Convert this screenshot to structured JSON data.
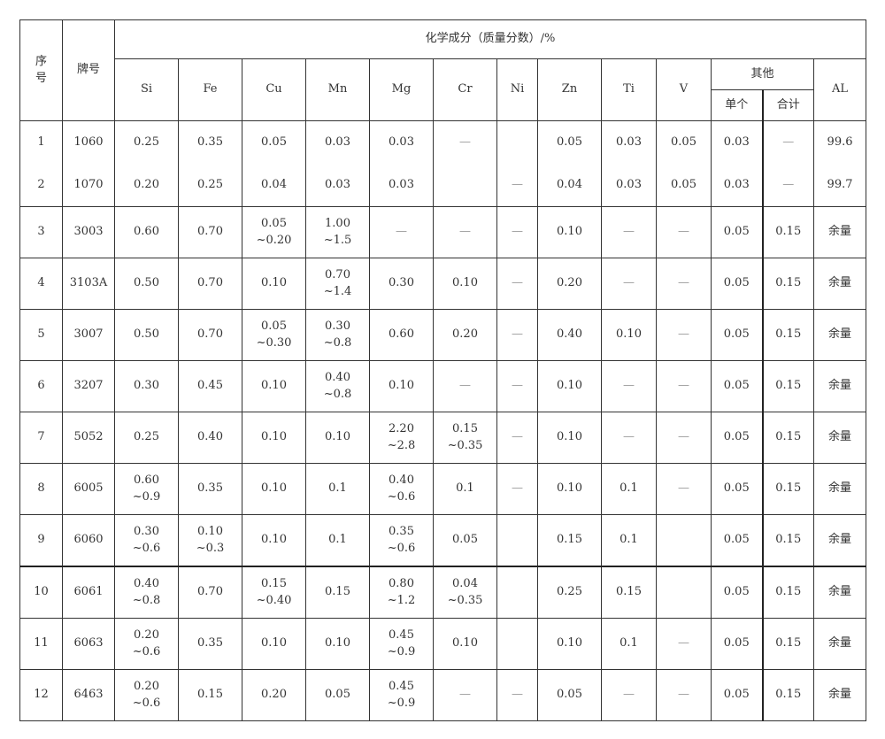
{
  "header": {
    "seq": "序号",
    "grade": "牌号",
    "composition": "化学成分（质量分数）/%",
    "elements": [
      "Si",
      "Fe",
      "Cu",
      "Mn",
      "Mg",
      "Cr",
      "Ni",
      "Zn",
      "Ti",
      "V"
    ],
    "others": "其他",
    "single": "单个",
    "total": "合计",
    "al": "AL"
  },
  "rows": [
    {
      "seq": "1",
      "grade": "1060",
      "cells": [
        [
          "0.25"
        ],
        [
          "0.35"
        ],
        [
          "0.05"
        ],
        [
          "0.03"
        ],
        [
          "0.03"
        ],
        [
          "—"
        ],
        [
          ""
        ],
        [
          "0.05"
        ],
        [
          "0.03"
        ],
        [
          "0.05"
        ],
        [
          "0.03"
        ],
        [
          "—"
        ],
        [
          "99.6"
        ]
      ]
    },
    {
      "seq": "2",
      "grade": "1070",
      "cells": [
        [
          "0.20"
        ],
        [
          "0.25"
        ],
        [
          "0.04"
        ],
        [
          "0.03"
        ],
        [
          "0.03"
        ],
        [
          ""
        ],
        [
          "—"
        ],
        [
          "0.04"
        ],
        [
          "0.03"
        ],
        [
          "0.05"
        ],
        [
          "0.03"
        ],
        [
          "—"
        ],
        [
          "99.7"
        ]
      ]
    },
    {
      "seq": "3",
      "grade": "3003",
      "cells": [
        [
          "0.60"
        ],
        [
          "0.70"
        ],
        [
          "0.05",
          "~0.20"
        ],
        [
          "1.00",
          "~1.5"
        ],
        [
          "—"
        ],
        [
          "—"
        ],
        [
          "—"
        ],
        [
          "0.10"
        ],
        [
          "—"
        ],
        [
          "—"
        ],
        [
          "0.05"
        ],
        [
          "0.15"
        ],
        [
          "余量"
        ]
      ]
    },
    {
      "seq": "4",
      "grade": "3103A",
      "cells": [
        [
          "0.50"
        ],
        [
          "0.70"
        ],
        [
          "0.10"
        ],
        [
          "0.70",
          "~1.4"
        ],
        [
          "0.30"
        ],
        [
          "0.10"
        ],
        [
          "—"
        ],
        [
          "0.20"
        ],
        [
          "—"
        ],
        [
          "—"
        ],
        [
          "0.05"
        ],
        [
          "0.15"
        ],
        [
          "余量"
        ]
      ]
    },
    {
      "seq": "5",
      "grade": "3007",
      "cells": [
        [
          "0.50"
        ],
        [
          "0.70"
        ],
        [
          "0.05",
          "~0.30"
        ],
        [
          "0.30",
          "~0.8"
        ],
        [
          "0.60"
        ],
        [
          "0.20"
        ],
        [
          "—"
        ],
        [
          "0.40"
        ],
        [
          "0.10"
        ],
        [
          "—"
        ],
        [
          "0.05"
        ],
        [
          "0.15"
        ],
        [
          "余量"
        ]
      ]
    },
    {
      "seq": "6",
      "grade": "3207",
      "cells": [
        [
          "0.30"
        ],
        [
          "0.45"
        ],
        [
          "0.10"
        ],
        [
          "0.40",
          "~0.8"
        ],
        [
          "0.10"
        ],
        [
          "—"
        ],
        [
          "—"
        ],
        [
          "0.10"
        ],
        [
          "—"
        ],
        [
          "—"
        ],
        [
          "0.05"
        ],
        [
          "0.15"
        ],
        [
          "余量"
        ]
      ]
    },
    {
      "seq": "7",
      "grade": "5052",
      "cells": [
        [
          "0.25"
        ],
        [
          "0.40"
        ],
        [
          "0.10"
        ],
        [
          "0.10"
        ],
        [
          "2.20",
          "~2.8"
        ],
        [
          "0.15",
          "~0.35"
        ],
        [
          "—"
        ],
        [
          "0.10"
        ],
        [
          "—"
        ],
        [
          "—"
        ],
        [
          "0.05"
        ],
        [
          "0.15"
        ],
        [
          "余量"
        ]
      ]
    },
    {
      "seq": "8",
      "grade": "6005",
      "cells": [
        [
          "0.60",
          "~0.9"
        ],
        [
          "0.35"
        ],
        [
          "0.10"
        ],
        [
          "0.1"
        ],
        [
          "0.40",
          "~0.6"
        ],
        [
          "0.1"
        ],
        [
          "—"
        ],
        [
          "0.10"
        ],
        [
          "0.1"
        ],
        [
          "—"
        ],
        [
          "0.05"
        ],
        [
          "0.15"
        ],
        [
          "余量"
        ]
      ]
    },
    {
      "seq": "9",
      "grade": "6060",
      "cells": [
        [
          "0.30",
          "~0.6"
        ],
        [
          "0.10",
          "~0.3"
        ],
        [
          "0.10"
        ],
        [
          "0.1"
        ],
        [
          "0.35",
          "~0.6"
        ],
        [
          "0.05"
        ],
        [
          ""
        ],
        [
          "0.15"
        ],
        [
          "0.1"
        ],
        [
          ""
        ],
        [
          "0.05"
        ],
        [
          "0.15"
        ],
        [
          "余量"
        ]
      ]
    },
    {
      "seq": "10",
      "grade": "6061",
      "cells": [
        [
          "0.40",
          "~0.8"
        ],
        [
          "0.70"
        ],
        [
          "0.15",
          "~0.40"
        ],
        [
          "0.15"
        ],
        [
          "0.80",
          "~1.2"
        ],
        [
          "0.04",
          "~0.35"
        ],
        [
          ""
        ],
        [
          "0.25"
        ],
        [
          "0.15"
        ],
        [
          ""
        ],
        [
          "0.05"
        ],
        [
          "0.15"
        ],
        [
          "余量"
        ]
      ]
    },
    {
      "seq": "11",
      "grade": "6063",
      "cells": [
        [
          "0.20",
          "~0.6"
        ],
        [
          "0.35"
        ],
        [
          "0.10"
        ],
        [
          "0.10"
        ],
        [
          "0.45",
          "~0.9"
        ],
        [
          "0.10"
        ],
        [
          ""
        ],
        [
          "0.10"
        ],
        [
          "0.1"
        ],
        [
          "—"
        ],
        [
          "0.05"
        ],
        [
          "0.15"
        ],
        [
          "余量"
        ]
      ]
    },
    {
      "seq": "12",
      "grade": "6463",
      "cells": [
        [
          "0.20",
          "~0.6"
        ],
        [
          "0.15"
        ],
        [
          "0.20"
        ],
        [
          "0.05"
        ],
        [
          "0.45",
          "~0.9"
        ],
        [
          "—"
        ],
        [
          "—"
        ],
        [
          "0.05"
        ],
        [
          "—"
        ],
        [
          "—"
        ],
        [
          "0.05"
        ],
        [
          "0.15"
        ],
        [
          "余量"
        ]
      ]
    }
  ]
}
